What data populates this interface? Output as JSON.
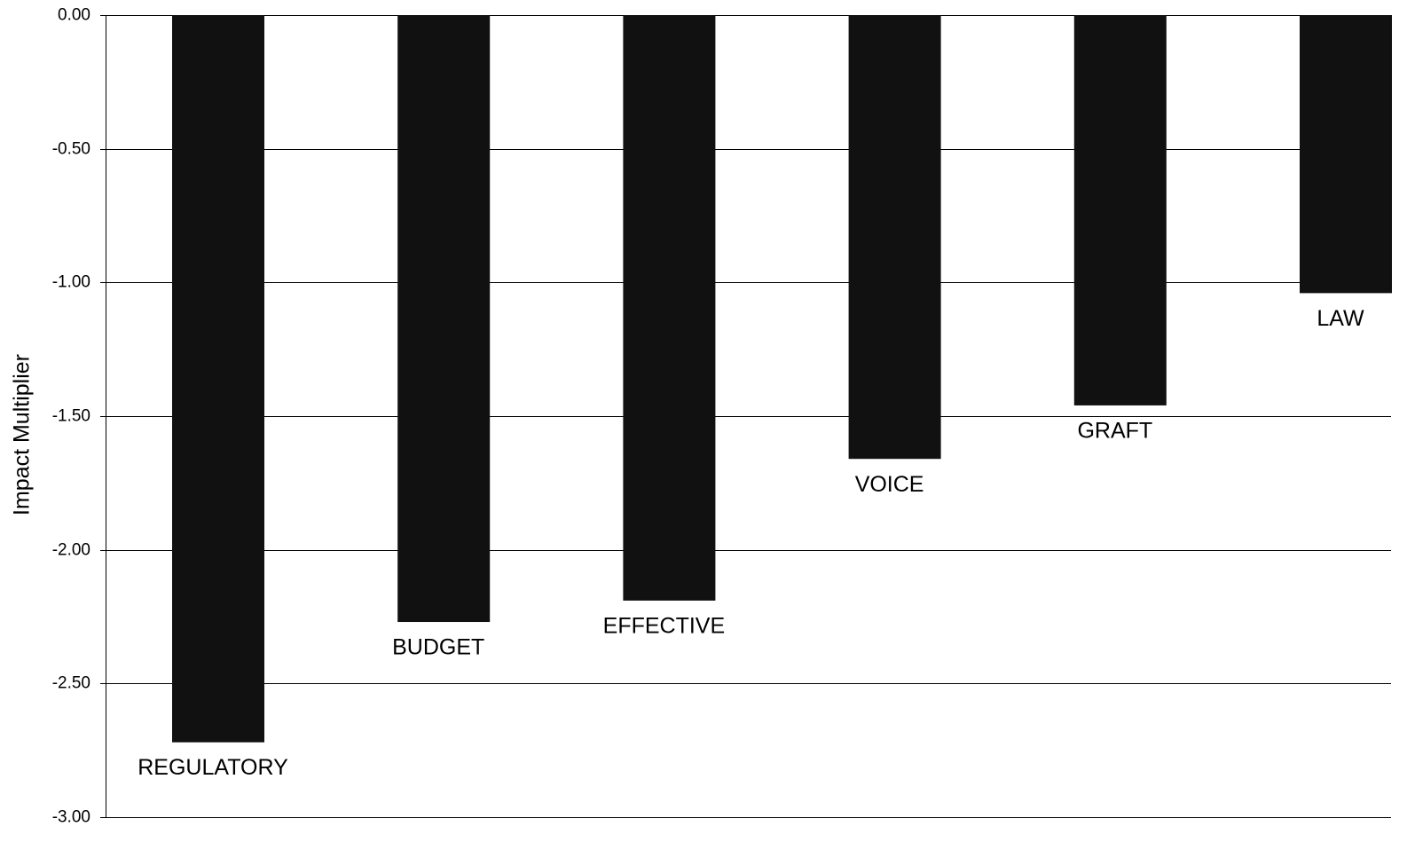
{
  "chart_data": {
    "type": "bar",
    "title": "",
    "xlabel": "",
    "ylabel": "Impact Multiplier",
    "ylim": [
      -3.0,
      0.0
    ],
    "yticks": [
      "0.00",
      "-0.50",
      "-1.00",
      "-1.50",
      "-2.00",
      "-2.50",
      "-3.00"
    ],
    "grid": true,
    "bar_color": "#111111",
    "categories": [
      "REGULATORY",
      "BUDGET",
      "EFFECTIVE",
      "VOICE",
      "GRAFT",
      "LAW"
    ],
    "values": [
      -2.72,
      -2.27,
      -2.19,
      -1.66,
      -1.46,
      -1.04
    ]
  }
}
